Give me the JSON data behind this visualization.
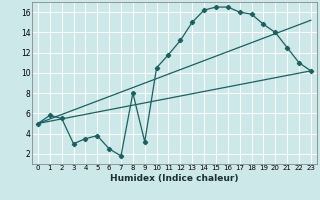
{
  "xlabel": "Humidex (Indice chaleur)",
  "bg_color": "#cce8e8",
  "grid_color": "#ffffff",
  "line_color": "#1a6060",
  "xlim": [
    -0.5,
    23.5
  ],
  "ylim": [
    1,
    17
  ],
  "xticks": [
    0,
    1,
    2,
    3,
    4,
    5,
    6,
    7,
    8,
    9,
    10,
    11,
    12,
    13,
    14,
    15,
    16,
    17,
    18,
    19,
    20,
    21,
    22,
    23
  ],
  "yticks": [
    2,
    4,
    6,
    8,
    10,
    12,
    14,
    16
  ],
  "curve1_x": [
    0,
    1,
    2,
    3,
    4,
    5,
    6,
    7,
    8,
    9,
    10,
    11,
    12,
    13,
    14,
    15,
    16,
    17,
    18,
    19,
    20,
    21,
    22,
    23
  ],
  "curve1_y": [
    5.0,
    5.8,
    5.5,
    3.0,
    3.5,
    3.8,
    2.5,
    1.8,
    8.0,
    3.2,
    10.5,
    11.8,
    13.2,
    15.0,
    16.2,
    16.5,
    16.5,
    16.0,
    15.8,
    14.8,
    14.0,
    12.5,
    11.0,
    10.2
  ],
  "line1_x": [
    0,
    23
  ],
  "line1_y": [
    5.0,
    15.2
  ],
  "line2_x": [
    0,
    23
  ],
  "line2_y": [
    5.0,
    10.2
  ]
}
